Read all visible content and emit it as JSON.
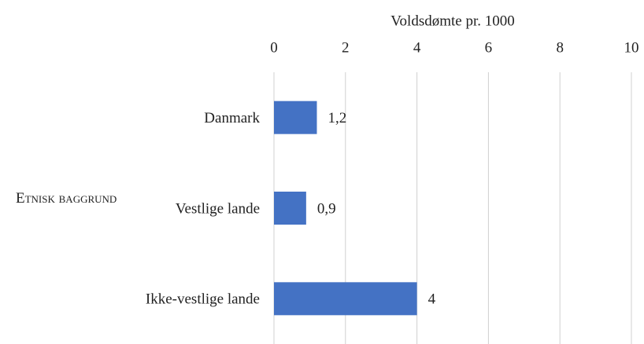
{
  "chart_data": {
    "type": "bar",
    "orientation": "horizontal",
    "title": "Voldsdømte pr. 1000",
    "ylabel": "Etnisk baggrund",
    "categories": [
      "Danmark",
      "Vestlige lande",
      "Ikke-vestlige lande"
    ],
    "values": [
      1.2,
      0.9,
      4
    ],
    "value_labels": [
      "1,2",
      "0,9",
      "4"
    ],
    "color": "#4472c4",
    "xlim": [
      0,
      10
    ],
    "xticks": [
      0,
      2,
      4,
      6,
      8,
      10
    ],
    "grid": true
  }
}
